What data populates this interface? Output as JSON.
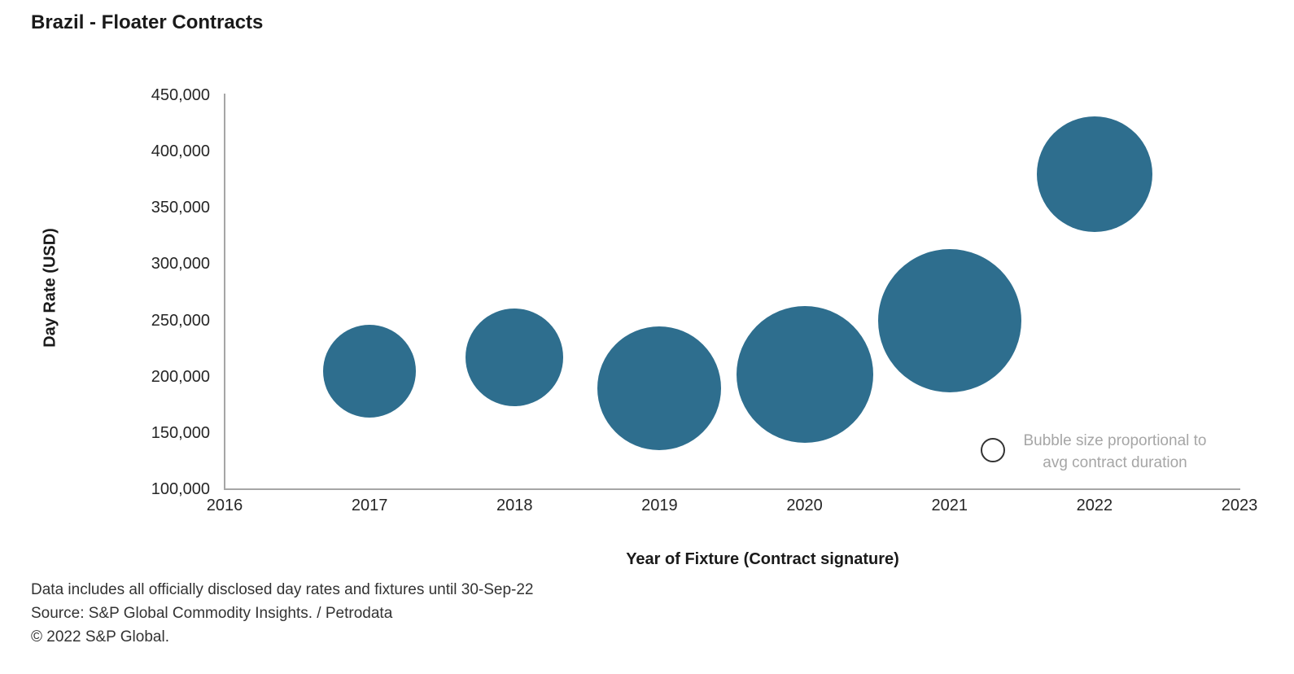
{
  "title": "Brazil - Floater Contracts",
  "chart_data": {
    "type": "scatter",
    "subtype": "bubble",
    "title": "Brazil - Floater Contracts",
    "xlabel": "Year of Fixture (Contract signature)",
    "ylabel": "Day Rate (USD)",
    "xlim": [
      2016,
      2023
    ],
    "ylim": [
      100000,
      450000
    ],
    "grid": false,
    "x_ticks": [
      2016,
      2017,
      2018,
      2019,
      2020,
      2021,
      2022,
      2023
    ],
    "y_ticks": [
      100000,
      150000,
      200000,
      250000,
      300000,
      350000,
      400000,
      450000
    ],
    "bubble_color": "#2E6E8E",
    "size_note": "Bubble size proportional to avg contract duration",
    "points": [
      {
        "year": 2017,
        "day_rate": 205000,
        "radius_px": 57
      },
      {
        "year": 2018,
        "day_rate": 217000,
        "radius_px": 60
      },
      {
        "year": 2019,
        "day_rate": 190000,
        "radius_px": 76
      },
      {
        "year": 2020,
        "day_rate": 202000,
        "radius_px": 84
      },
      {
        "year": 2021,
        "day_rate": 250000,
        "radius_px": 88
      },
      {
        "year": 2022,
        "day_rate": 380000,
        "radius_px": 71
      }
    ]
  },
  "legend": {
    "line1": "Bubble size proportional to",
    "line2": "avg contract duration"
  },
  "footnotes": [
    "Data includes all officially disclosed day rates and fixtures until 30-Sep-22",
    "Source: S&P Global Commodity Insights. /  Petrodata",
    "© 2022 S&P Global."
  ],
  "colors": {
    "bubble": "#2E6E8E",
    "axis_line": "#A6A6A6",
    "legend_text": "#A6A6A6",
    "text": "#262626"
  }
}
